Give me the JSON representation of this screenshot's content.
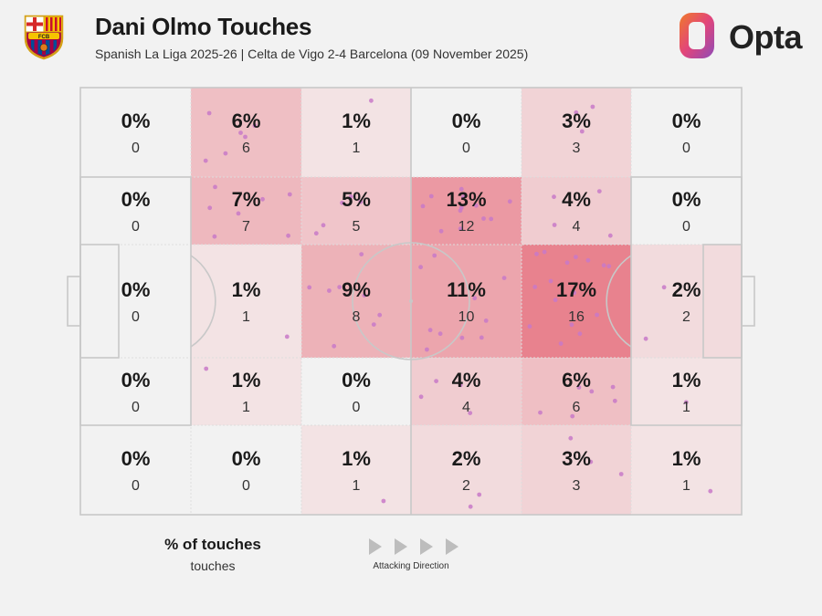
{
  "header": {
    "title": "Dani Olmo Touches",
    "subtitle": "Spanish La Liga 2025-26 | Celta de Vigo 2-4 Barcelona (09 November 2025)",
    "crest_letters": "FCB",
    "brand": "Opta"
  },
  "legend": {
    "title": "% of touches",
    "subtitle": "touches",
    "direction": "Attacking Direction"
  },
  "colors": {
    "background": "#f2f2f2",
    "zone_max": "#e8828e",
    "zone_base": "#f4eded",
    "line": "#c8c8c8",
    "dot": "#c879c8",
    "brand_orange": "#f07a2a",
    "brand_purple": "#8e4bb8"
  },
  "chart_data": {
    "type": "heatmap",
    "title": "Dani Olmo Touches",
    "rows": 5,
    "cols": 6,
    "total_touches": 93,
    "zones": [
      [
        {
          "pct": "0%",
          "count": 0
        },
        {
          "pct": "6%",
          "count": 6
        },
        {
          "pct": "1%",
          "count": 1
        },
        {
          "pct": "0%",
          "count": 0
        },
        {
          "pct": "3%",
          "count": 3
        },
        {
          "pct": "0%",
          "count": 0
        }
      ],
      [
        {
          "pct": "0%",
          "count": 0
        },
        {
          "pct": "7%",
          "count": 7
        },
        {
          "pct": "5%",
          "count": 5
        },
        {
          "pct": "13%",
          "count": 12
        },
        {
          "pct": "4%",
          "count": 4
        },
        {
          "pct": "0%",
          "count": 0
        }
      ],
      [
        {
          "pct": "0%",
          "count": 0
        },
        {
          "pct": "1%",
          "count": 1
        },
        {
          "pct": "9%",
          "count": 8
        },
        {
          "pct": "11%",
          "count": 10
        },
        {
          "pct": "17%",
          "count": 16
        },
        {
          "pct": "2%",
          "count": 2
        }
      ],
      [
        {
          "pct": "0%",
          "count": 0
        },
        {
          "pct": "1%",
          "count": 1
        },
        {
          "pct": "0%",
          "count": 0
        },
        {
          "pct": "4%",
          "count": 4
        },
        {
          "pct": "6%",
          "count": 6
        },
        {
          "pct": "1%",
          "count": 1
        }
      ],
      [
        {
          "pct": "0%",
          "count": 0
        },
        {
          "pct": "0%",
          "count": 0
        },
        {
          "pct": "1%",
          "count": 1
        },
        {
          "pct": "2%",
          "count": 2
        },
        {
          "pct": "3%",
          "count": 3
        },
        {
          "pct": "1%",
          "count": 1
        }
      ]
    ]
  }
}
